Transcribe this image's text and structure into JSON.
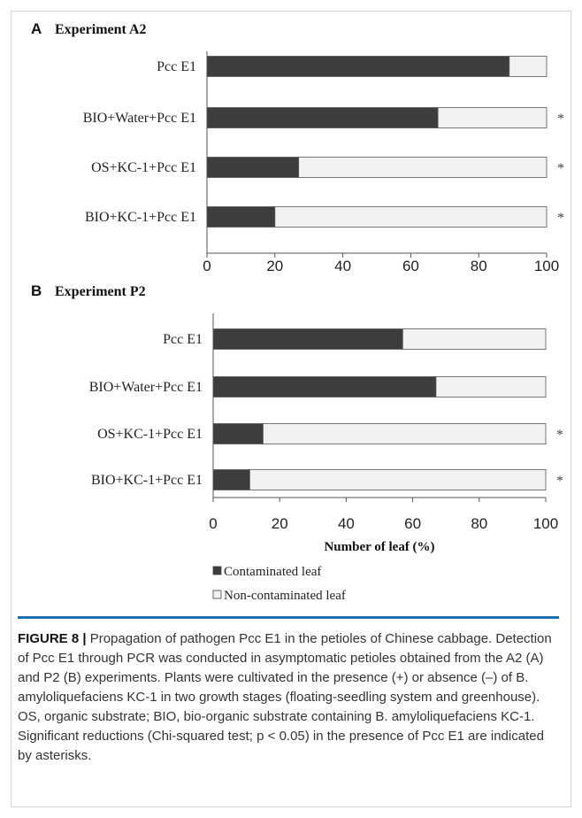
{
  "chart_data": [
    {
      "type": "bar",
      "orientation": "horizontal",
      "stacked": true,
      "panel": "A",
      "title": "Experiment A2",
      "categories": [
        "Pcc E1",
        "BIO+Water+Pcc E1",
        "OS+KC-1+Pcc E1",
        "BIO+KC-1+Pcc E1"
      ],
      "series": [
        {
          "name": "Contaminated leaf",
          "color": "#3d3d3d",
          "values": [
            89,
            68,
            27,
            20
          ]
        },
        {
          "name": "Non-contaminated leaf",
          "color": "#f2f2f2",
          "values": [
            11,
            32,
            73,
            80
          ]
        }
      ],
      "significance": [
        "",
        "*",
        "*",
        "*"
      ],
      "xlim": [
        0,
        100
      ],
      "xticks": [
        "0",
        "20",
        "40",
        "60",
        "80",
        "100"
      ],
      "xlabel": ""
    },
    {
      "type": "bar",
      "orientation": "horizontal",
      "stacked": true,
      "panel": "B",
      "title": "Experiment P2",
      "categories": [
        "Pcc E1",
        "BIO+Water+Pcc E1",
        "OS+KC-1+Pcc E1",
        "BIO+KC-1+Pcc E1"
      ],
      "series": [
        {
          "name": "Contaminated leaf",
          "color": "#3d3d3d",
          "values": [
            57,
            67,
            15,
            11
          ]
        },
        {
          "name": "Non-contaminated leaf",
          "color": "#f2f2f2",
          "values": [
            43,
            33,
            85,
            89
          ]
        }
      ],
      "significance": [
        "",
        "",
        "*",
        "*"
      ],
      "xlim": [
        0,
        100
      ],
      "xticks": [
        "0",
        "20",
        "40",
        "60",
        "80",
        "100"
      ],
      "xlabel": "Number of leaf (%)"
    }
  ],
  "legend": [
    {
      "label": "Contaminated leaf",
      "color": "#3d3d3d"
    },
    {
      "label": "Non-contaminated leaf",
      "color": "#f2f2f2"
    }
  ],
  "caption": {
    "lead": "FIGURE 8 |",
    "text": " Propagation of pathogen Pcc E1 in the petioles of Chinese cabbage. Detection of Pcc E1 through PCR was conducted in asymptomatic petioles obtained from the A2 (A) and P2 (B) experiments. Plants were cultivated in the presence (+) or absence (–) of B. amyloliquefaciens KC-1 in two growth stages (floating-seedling system and greenhouse). OS, organic substrate; BIO, bio-organic substrate containing B. amyloliquefaciens KC-1. Significant reductions (Chi-squared test; p < 0.05) in the presence of Pcc E1 are indicated by asterisks."
  }
}
